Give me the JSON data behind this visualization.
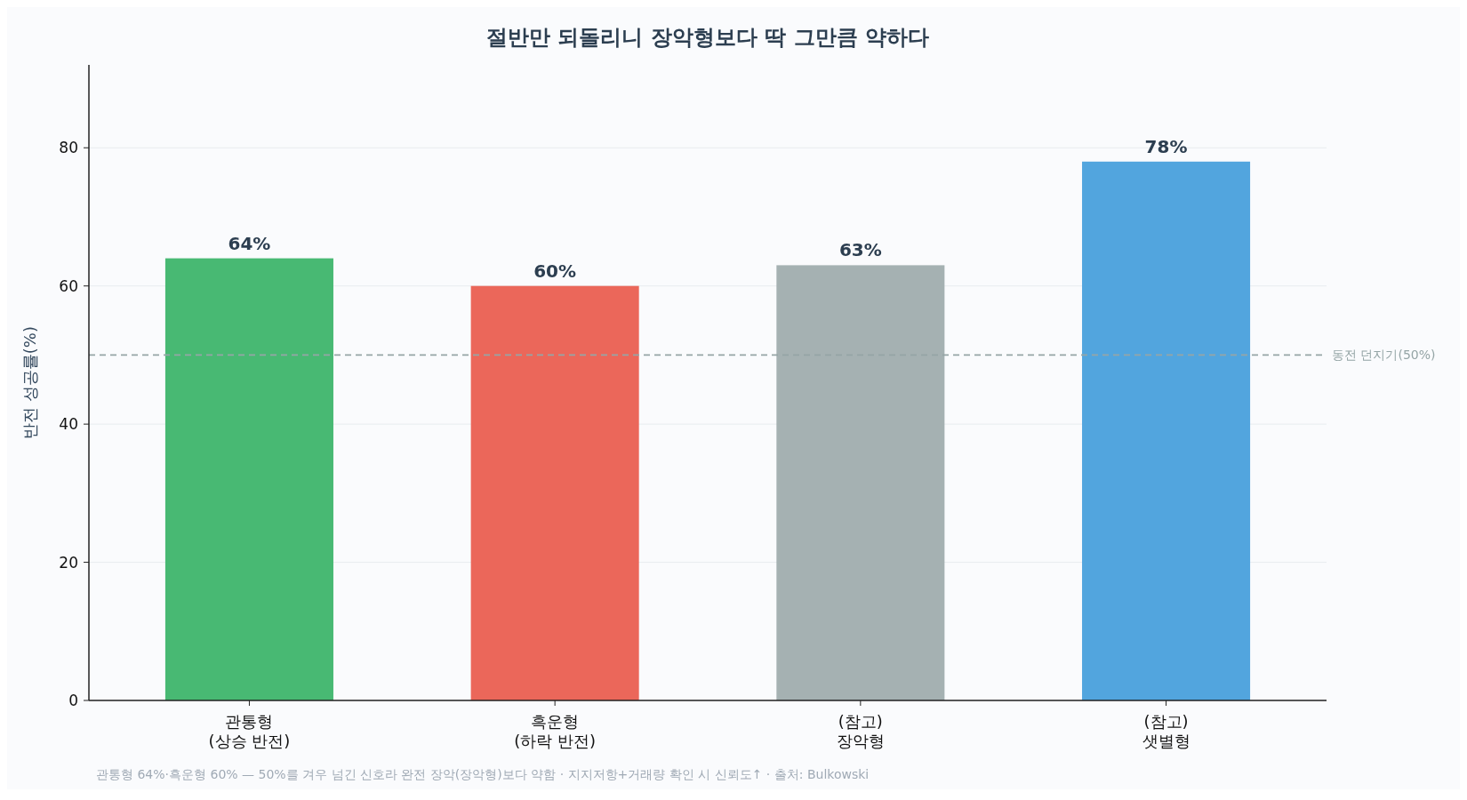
{
  "chart_data": {
    "type": "bar",
    "title": "절반만 되돌리니 장악형보다 딱 그만큼 약하다",
    "ylabel": "반전 성공률(%)",
    "categories": [
      "관통형\n(상승 반전)",
      "흑운형\n(하락 반전)",
      "(참고)\n장악형",
      "(참고)\n샛별형"
    ],
    "values": [
      64,
      60,
      63,
      78
    ],
    "colors": [
      "#48b973",
      "#eb675a",
      "#a5b1b2",
      "#52a5de"
    ],
    "value_labels": [
      "64%",
      "60%",
      "63%",
      "78%"
    ],
    "ylim": [
      0,
      92
    ],
    "yticks": [
      0,
      20,
      40,
      60,
      80
    ],
    "grid": "y",
    "ref_lines": [
      {
        "axis": "y",
        "value": 50,
        "label": "동전 던지기(50%)",
        "color": "#95a5a6",
        "line_style": "dashed"
      }
    ],
    "annotations": [
      "관통형 64%·흑운형 60% — 50%를 겨우 넘긴 신호라 완전 장악(장악형)보다 약함 · 지지저항+거래량 확인 시 신뢰도↑ · 출처: Bulkowski"
    ]
  }
}
